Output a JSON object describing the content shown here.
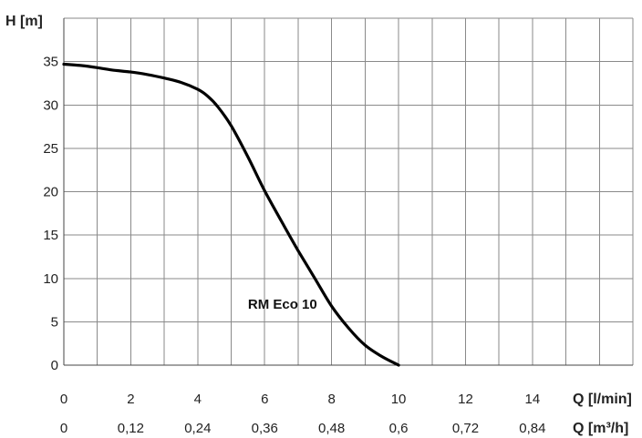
{
  "chart_data": {
    "type": "line",
    "ylabel": "H [m]",
    "xlabel": "Q [l/min]",
    "xlabel2": "Q [m³/h]",
    "xlim": [
      0,
      17
    ],
    "ylim": [
      0,
      40
    ],
    "x_ticks": [
      "0",
      "2",
      "4",
      "6",
      "8",
      "10",
      "12",
      "14"
    ],
    "x_tick_values": [
      0,
      2,
      4,
      6,
      8,
      10,
      12,
      14
    ],
    "x2_ticks": [
      "0",
      "0,12",
      "0,24",
      "0,36",
      "0,48",
      "0,6",
      "0,72",
      "0,84"
    ],
    "y_ticks": [
      "0",
      "5",
      "10",
      "15",
      "20",
      "25",
      "30",
      "35"
    ],
    "y_tick_values": [
      0,
      5,
      10,
      15,
      20,
      25,
      30,
      35
    ],
    "grid": true,
    "series": [
      {
        "name": "RM Eco 10",
        "x": [
          0,
          0.5,
          1,
          1.5,
          2,
          2.5,
          3,
          3.5,
          4,
          4.3,
          4.6,
          5,
          5.5,
          6,
          6.5,
          7,
          7.5,
          8,
          8.5,
          9,
          9.5,
          10
        ],
        "y": [
          34.7,
          34.55,
          34.3,
          34.0,
          33.8,
          33.5,
          33.1,
          32.6,
          31.8,
          31.0,
          29.8,
          27.6,
          24.0,
          20.1,
          16.6,
          13.2,
          10.0,
          6.8,
          4.3,
          2.3,
          1.0,
          0
        ]
      }
    ]
  }
}
